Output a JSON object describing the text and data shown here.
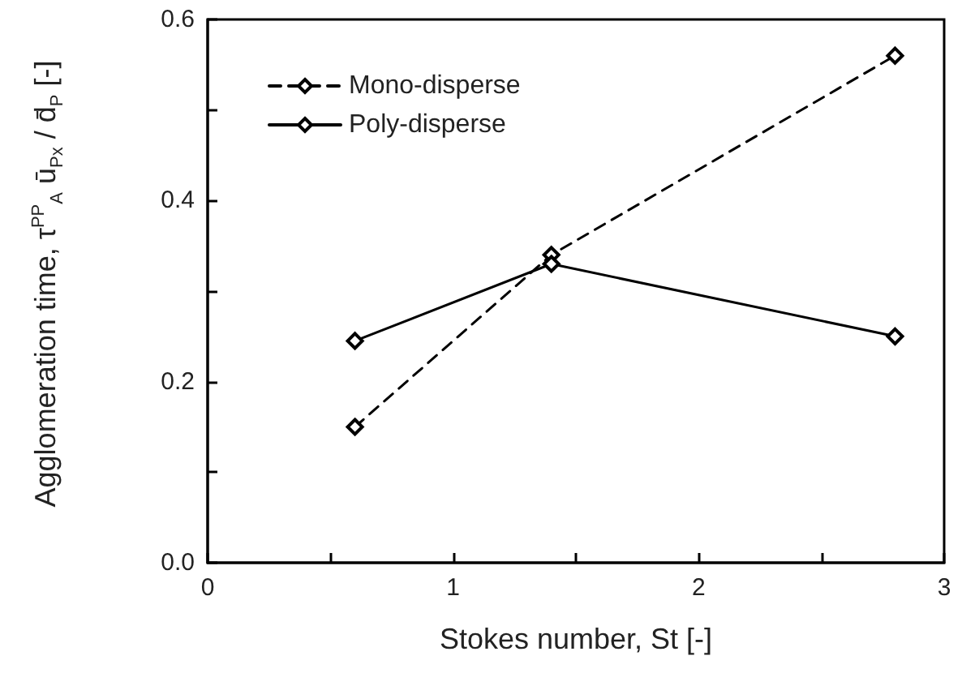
{
  "chart_data": {
    "type": "line",
    "xlabel": "Stokes number, St [-]",
    "ylabel": "Agglomeration time, τ$^{PP}$$_{A}$ ū$_{Px}$ / d̄$_{P}$ [-]",
    "x": [
      0.6,
      1.4,
      2.8
    ],
    "series": [
      {
        "name": "Mono-disperse",
        "color": "#000000",
        "values": [
          0.15,
          0.34,
          0.56
        ],
        "line_style": "dashed"
      },
      {
        "name": "Poly-disperse",
        "color": "#000000",
        "values": [
          0.245,
          0.33,
          0.25
        ],
        "line_style": "solid"
      }
    ],
    "xlim": [
      0,
      3
    ],
    "xticks": [
      0,
      {
        "value": 0.5,
        "label": null
      },
      1,
      {
        "value": 1.5,
        "label": null
      },
      2,
      {
        "value": 2.5,
        "label": null
      },
      3
    ],
    "ylim": [
      0,
      0.6
    ],
    "yticks": [
      {
        "value": 0,
        "label": "0.0"
      },
      {
        "value": 0.1,
        "label": null
      },
      {
        "value": 0.2,
        "label": "0.2"
      },
      {
        "value": 0.3,
        "label": null
      },
      {
        "value": 0.4,
        "label": "0.4"
      },
      {
        "value": 0.5,
        "label": null
      },
      {
        "value": 0.6,
        "label": "0.6"
      }
    ],
    "grid": false,
    "legend": "top left",
    "marker": "diamond"
  }
}
